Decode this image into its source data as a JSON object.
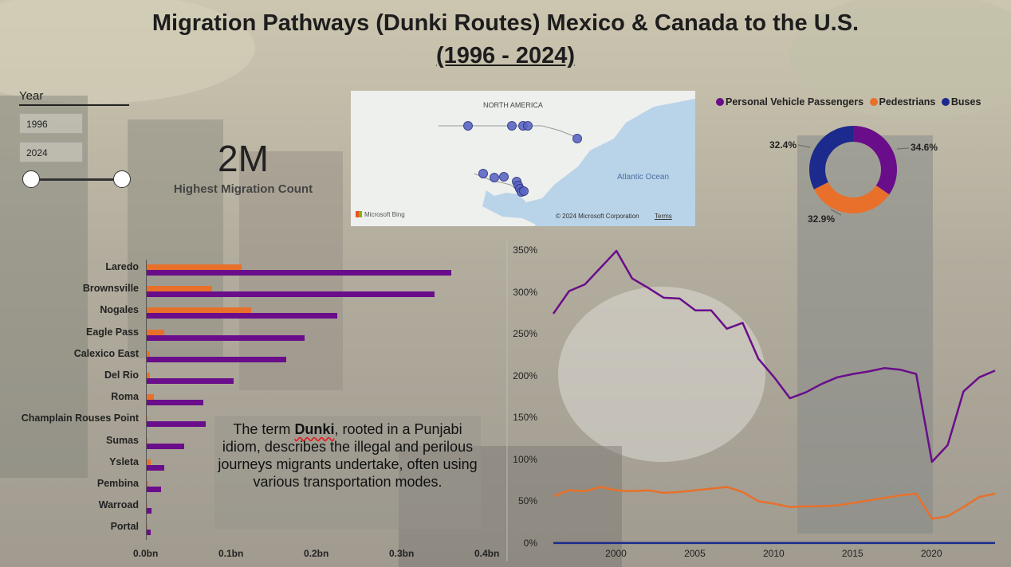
{
  "title": {
    "line1": "Migration Pathways (Dunki Routes) Mexico & Canada to the U.S.",
    "line2": "(1996 - 2024)"
  },
  "year_slicer": {
    "label": "Year",
    "start": "1996",
    "end": "2024"
  },
  "kpi": {
    "value": "2M",
    "label": "Highest Migration Count"
  },
  "map": {
    "region_label": "NORTH AMERICA",
    "ocean_label": "Atlantic Ocean",
    "provider": "Microsoft Bing",
    "copyright": "© 2024 Microsoft Corporation",
    "terms": "Terms",
    "land_color": "#eef0ee",
    "water_color": "#b9d3e8",
    "marker_color": "#5c67c4"
  },
  "note": {
    "before": "The term ",
    "term": "Dunki",
    "after": ", rooted in a Punjabi idiom, describes the illegal and perilous journeys migrants undertake, often using various transportation modes."
  },
  "colors": {
    "personal": "#6a0d8a",
    "pedestrians": "#e8702a",
    "buses": "#1b2a8c"
  },
  "chart_data": [
    {
      "type": "pie",
      "subtype": "donut",
      "labels": [
        "Personal Vehicle Passengers",
        "Pedestrians",
        "Buses"
      ],
      "values": [
        34.6,
        32.9,
        32.4
      ],
      "value_labels": [
        "34.6%",
        "32.9%",
        "32.4%"
      ],
      "legend_position": "top"
    },
    {
      "type": "bar",
      "orientation": "horizontal",
      "categories": [
        "Laredo",
        "Brownsville",
        "Nogales",
        "Eagle Pass",
        "Calexico East",
        "Del Rio",
        "Roma",
        "Champlain Rouses Point",
        "Sumas",
        "Ysleta",
        "Pembina",
        "Warroad",
        "Portal"
      ],
      "series": [
        {
          "name": "Pedestrians",
          "values": [
            0.111,
            0.077,
            0.122,
            0.021,
            0.004,
            0.004,
            0.008,
            0.001,
            0.001,
            0.005,
            0.002,
            0.001,
            0.001
          ]
        },
        {
          "name": "Personal Vehicle Passengers",
          "values": [
            0.357,
            0.337,
            0.223,
            0.185,
            0.164,
            0.102,
            0.066,
            0.069,
            0.044,
            0.021,
            0.017,
            0.006,
            0.005
          ]
        }
      ],
      "x_ticks": [
        "0.0bn",
        "0.1bn",
        "0.2bn",
        "0.3bn",
        "0.4bn"
      ],
      "xlim": [
        0,
        0.4
      ]
    },
    {
      "type": "line",
      "x": [
        1996,
        1997,
        1998,
        1999,
        2000,
        2001,
        2002,
        2003,
        2004,
        2005,
        2006,
        2007,
        2008,
        2009,
        2010,
        2011,
        2012,
        2013,
        2014,
        2015,
        2016,
        2017,
        2018,
        2019,
        2020,
        2021,
        2022,
        2023,
        2024
      ],
      "series": [
        {
          "name": "Personal Vehicle Passengers",
          "values": [
            275,
            302,
            310,
            330,
            350,
            317,
            306,
            294,
            293,
            279,
            279,
            257,
            264,
            221,
            199,
            174,
            181,
            191,
            199,
            203,
            206,
            210,
            208,
            203,
            98,
            118,
            182,
            199,
            207
          ]
        },
        {
          "name": "Pedestrians",
          "values": [
            57,
            64,
            63,
            68,
            64,
            63,
            64,
            61,
            62,
            64,
            66,
            68,
            62,
            51,
            48,
            44,
            45,
            45,
            46,
            49,
            52,
            55,
            58,
            60,
            30,
            33,
            44,
            56,
            60
          ]
        },
        {
          "name": "Buses",
          "values": [
            1,
            1,
            1,
            1,
            1,
            1,
            1,
            1,
            1,
            1,
            1,
            1,
            1,
            1,
            1,
            1,
            1,
            1,
            1,
            1,
            1,
            1,
            1,
            1,
            1,
            1,
            1,
            1,
            1
          ]
        }
      ],
      "y_ticks": [
        "0%",
        "50%",
        "100%",
        "150%",
        "200%",
        "250%",
        "300%",
        "350%"
      ],
      "x_ticks": [
        "2000",
        "2005",
        "2010",
        "2015",
        "2020"
      ],
      "ylim": [
        0,
        350
      ]
    }
  ]
}
